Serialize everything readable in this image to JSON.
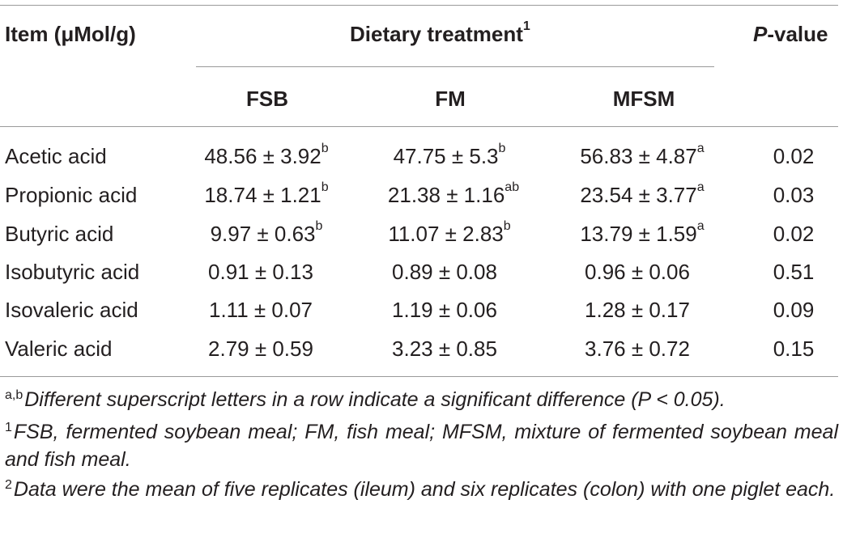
{
  "table": {
    "header": {
      "item": "Item (μMol/g)",
      "treatment": "Dietary treatment",
      "treatment_note": "1",
      "p_italic": "P",
      "p_rest": "-value",
      "groups": [
        "FSB",
        "FM",
        "MFSM"
      ]
    },
    "rows": [
      {
        "item": "Acetic acid",
        "fsb": "48.56 ± 3.92",
        "fsb_sup": "b",
        "fm": "47.75 ± 5.3",
        "fm_sup": "b",
        "mfsm": "56.83 ± 4.87",
        "mfsm_sup": "a",
        "p": "0.02"
      },
      {
        "item": "Propionic acid",
        "fsb": "18.74 ± 1.21",
        "fsb_sup": "b",
        "fm": "21.38 ± 1.16",
        "fm_sup": "ab",
        "mfsm": "23.54 ± 3.77",
        "mfsm_sup": "a",
        "p": "0.03"
      },
      {
        "item": "Butyric acid",
        "fsb": "9.97 ± 0.63",
        "fsb_sup": "b",
        "fm": "11.07 ± 2.83",
        "fm_sup": "b",
        "mfsm": "13.79 ± 1.59",
        "mfsm_sup": "a",
        "p": "0.02"
      },
      {
        "item": "Isobutyric acid",
        "fsb": "0.91 ± 0.13",
        "fsb_sup": "",
        "fm": "0.89 ± 0.08",
        "fm_sup": "",
        "mfsm": "0.96 ± 0.06",
        "mfsm_sup": "",
        "p": "0.51"
      },
      {
        "item": "Isovaleric acid",
        "fsb": "1.11 ± 0.07",
        "fsb_sup": "",
        "fm": "1.19 ± 0.06",
        "fm_sup": "",
        "mfsm": "1.28 ± 0.17",
        "mfsm_sup": "",
        "p": "0.09"
      },
      {
        "item": "Valeric acid",
        "fsb": "2.79 ± 0.59",
        "fsb_sup": "",
        "fm": "3.23 ± 0.85",
        "fm_sup": "",
        "mfsm": "3.76 ± 0.72",
        "mfsm_sup": "",
        "p": "0.15"
      }
    ]
  },
  "footnotes": [
    {
      "mark": "a,b",
      "text": "Different superscript letters in a row indicate a significant difference (P < 0.05)."
    },
    {
      "mark": "1",
      "text": "FSB, fermented soybean meal; FM, fish meal; MFSM, mixture of fermented soybean meal and fish meal."
    },
    {
      "mark": "2",
      "text": "Data were the mean of five replicates (ileum) and six replicates (colon) with one piglet each."
    }
  ]
}
